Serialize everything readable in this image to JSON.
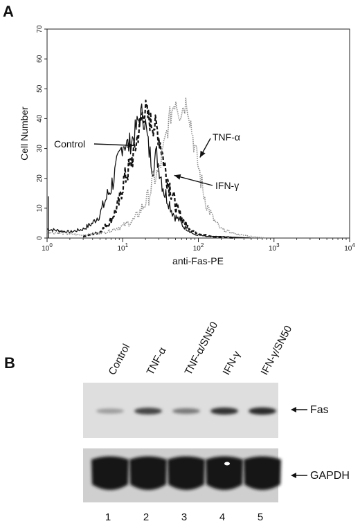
{
  "panelA": {
    "letter": "A",
    "chart_data": {
      "type": "line",
      "xlabel": "anti-Fas-PE",
      "ylabel": "Cell Number",
      "xscale": "log",
      "xlim": [
        1,
        10000
      ],
      "ylim": [
        0,
        70
      ],
      "yticks": [
        "0",
        "10",
        "20",
        "30",
        "40",
        "50",
        "60",
        "70"
      ],
      "xticks": [
        {
          "base": "10",
          "exp": "0"
        },
        {
          "base": "10",
          "exp": "1"
        },
        {
          "base": "10",
          "exp": "2"
        },
        {
          "base": "10",
          "exp": "3"
        },
        {
          "base": "10",
          "exp": "4"
        }
      ],
      "series": [
        {
          "key": "control",
          "style": "solid",
          "color": "#111111",
          "x": [
            1,
            2,
            3,
            4,
            5,
            6,
            7,
            8,
            9,
            10,
            12,
            14,
            16,
            18,
            20,
            22,
            25,
            28,
            32,
            36,
            40,
            45,
            50,
            56,
            63,
            71,
            80,
            90,
            100,
            130,
            200,
            300,
            500
          ],
          "y": [
            3,
            2,
            3,
            5,
            8,
            13,
            17,
            22,
            27,
            32,
            31,
            34,
            39,
            42,
            38,
            30,
            24,
            28,
            21,
            15,
            13,
            9,
            7,
            6,
            4,
            3,
            2,
            1,
            1,
            0.5,
            0.5,
            0.3,
            0
          ]
        },
        {
          "key": "ifn",
          "style": "dashed",
          "color": "#111111",
          "x": [
            3,
            5,
            7,
            9,
            10,
            12,
            14,
            16,
            18,
            20,
            22,
            25,
            28,
            32,
            36,
            40,
            45,
            50,
            56,
            63,
            71,
            80,
            90,
            100,
            150,
            300
          ],
          "y": [
            0.5,
            2,
            6,
            12,
            18,
            23,
            28,
            35,
            41,
            43,
            40,
            38,
            37,
            31,
            24,
            19,
            15,
            11,
            8,
            6,
            4,
            3,
            2,
            1.5,
            0.5,
            0
          ]
        },
        {
          "key": "tnf",
          "style": "dotted",
          "color": "#8a8a8a",
          "x": [
            1,
            3,
            6,
            10,
            14,
            18,
            22,
            26,
            30,
            35,
            40,
            45,
            50,
            56,
            63,
            71,
            80,
            90,
            100,
            115,
            130,
            160,
            200,
            300,
            500,
            800
          ],
          "y": [
            2,
            1,
            2,
            4,
            6,
            10,
            14,
            20,
            22,
            30,
            38,
            43,
            47,
            42,
            44,
            46,
            38,
            30,
            24,
            16,
            11,
            6,
            3,
            1.5,
            0.5,
            0
          ]
        }
      ],
      "annotations": [
        {
          "text": "Control",
          "series": "control",
          "point": [
            14,
            31
          ]
        },
        {
          "text": "TNF-α",
          "series": "tnf",
          "point": [
            105,
            27
          ]
        },
        {
          "text": "IFN-γ",
          "series": "ifn",
          "point": [
            48,
            21
          ]
        }
      ]
    }
  },
  "panelB": {
    "letter": "B",
    "lanes": [
      "Control",
      "TNF-α",
      "TNF-α/SN50",
      "IFN-γ",
      "IFN-γ/SN50"
    ],
    "lane_numbers": [
      "1",
      "2",
      "3",
      "4",
      "5"
    ],
    "bands": [
      {
        "label": "Fas",
        "intensity": [
          0.25,
          0.75,
          0.45,
          0.85,
          0.9
        ]
      },
      {
        "label": "GAPDH",
        "intensity": [
          1,
          1,
          1,
          1,
          1
        ]
      }
    ]
  }
}
